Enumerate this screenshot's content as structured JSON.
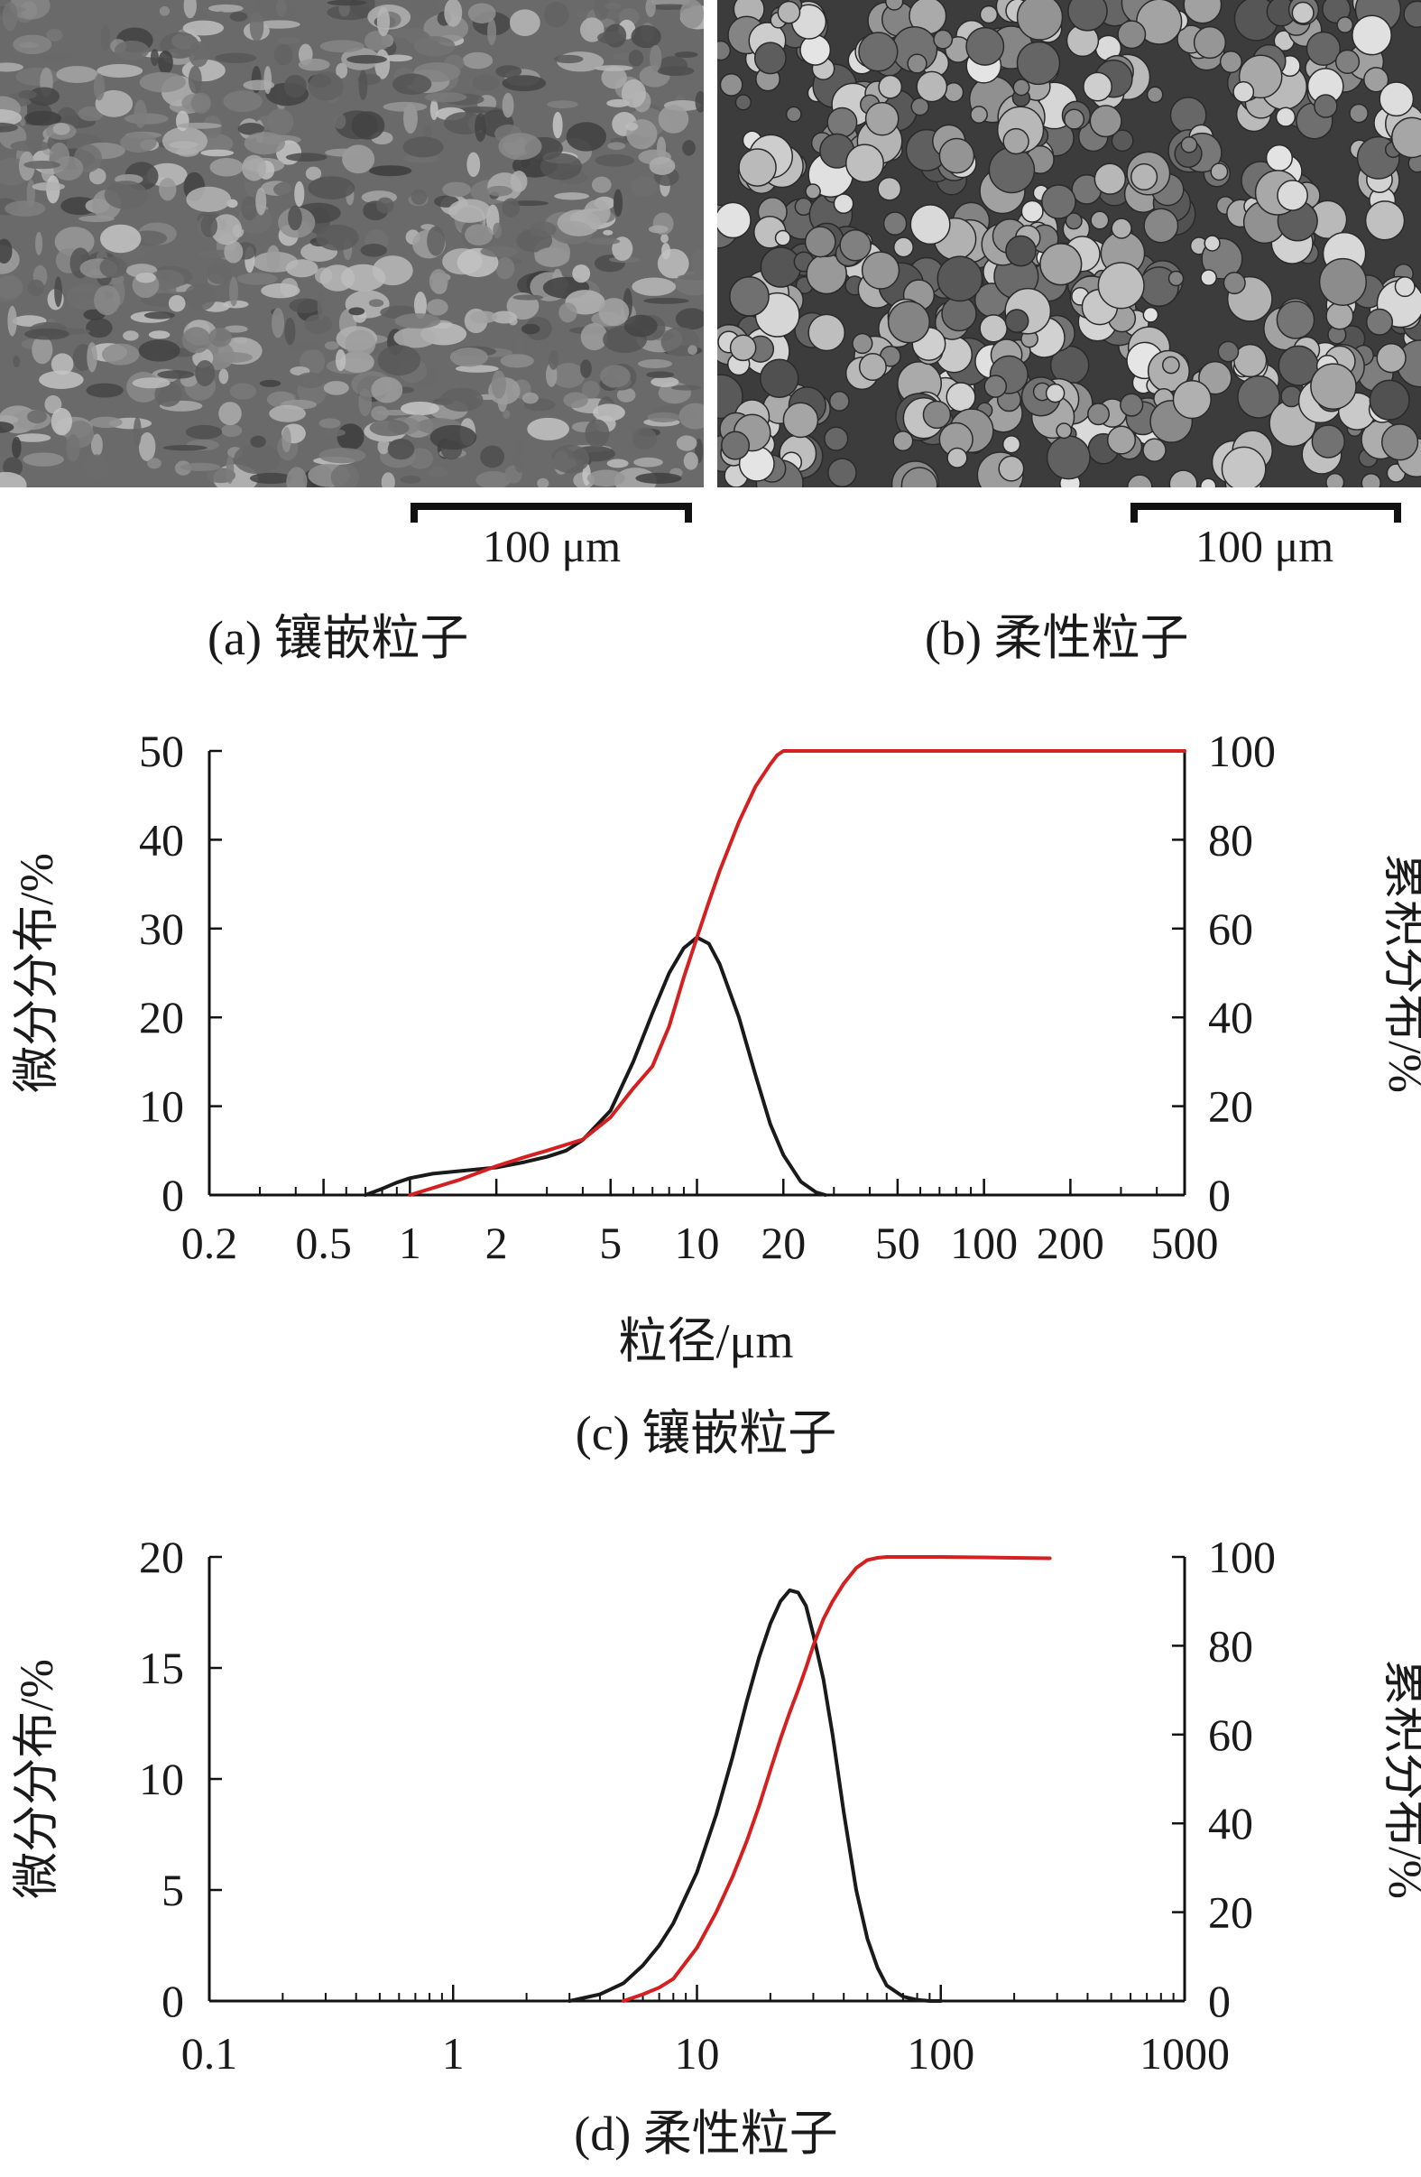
{
  "micrographs": [
    {
      "scale_label": "100 μm",
      "caption": "(a) 镶嵌粒子"
    },
    {
      "scale_label": "100 μm",
      "caption": "(b) 柔性粒子"
    }
  ],
  "chart_data": [
    {
      "type": "line",
      "caption": "(c) 镶嵌粒子",
      "xlabel": "粒径/μm",
      "ylabel": "微分分布/%",
      "ylabel_right": "累积分布/%",
      "xscale": "log",
      "xlim": [
        0.2,
        500
      ],
      "xticks": [
        "0.2",
        "0.5",
        "1",
        "2",
        "5",
        "10",
        "20",
        "50",
        "100",
        "200",
        "500"
      ],
      "ylim": [
        0,
        50
      ],
      "yticks": [
        "0",
        "10",
        "20",
        "30",
        "40",
        "50"
      ],
      "ylim_right": [
        0,
        100
      ],
      "yticks_right": [
        "0",
        "20",
        "40",
        "60",
        "80",
        "100"
      ],
      "grid": false,
      "series": [
        {
          "axis": "left",
          "color": "#1a1a1a",
          "x": [
            0.7,
            0.8,
            0.9,
            1.0,
            1.2,
            1.5,
            2.0,
            2.5,
            3.0,
            3.5,
            4.0,
            5.0,
            6.0,
            7.0,
            8.0,
            9.0,
            10.0,
            11.0,
            12.0,
            14.0,
            16.0,
            18.0,
            20.0,
            23.0,
            26.0,
            28.0
          ],
          "y": [
            0,
            0.7,
            1.4,
            1.9,
            2.4,
            2.7,
            3.1,
            3.7,
            4.3,
            5.0,
            6.2,
            9.5,
            15.0,
            20.5,
            25.0,
            27.8,
            29.0,
            28.3,
            26.0,
            20.0,
            13.5,
            8.0,
            4.5,
            1.5,
            0.3,
            0
          ]
        },
        {
          "axis": "right",
          "color": "#d42020",
          "x": [
            1.0,
            1.5,
            2.0,
            2.5,
            3.0,
            4.0,
            5.0,
            6.0,
            7.0,
            8.0,
            9.0,
            10.0,
            11.0,
            12.0,
            14.0,
            16.0,
            18.0,
            19.0,
            20.0,
            25.0,
            50.0,
            100.0,
            200.0,
            500.0
          ],
          "y": [
            0,
            3.5,
            6.5,
            8.5,
            10.0,
            12.5,
            17.5,
            24.0,
            29.0,
            38.0,
            49.0,
            58.0,
            66.0,
            73.0,
            84.0,
            92.0,
            97.0,
            99.0,
            100.0,
            100.0,
            100.0,
            100.0,
            100.0,
            100.0
          ]
        }
      ]
    },
    {
      "type": "line",
      "caption": "(d) 柔性粒子",
      "xlabel": "",
      "ylabel": "微分分布/%",
      "ylabel_right": "累积分布/%",
      "xscale": "log",
      "xlim": [
        0.1,
        1000
      ],
      "xticks": [
        "0.1",
        "1",
        "10",
        "100",
        "1000"
      ],
      "ylim": [
        0,
        20
      ],
      "yticks": [
        "0",
        "5",
        "10",
        "15",
        "20"
      ],
      "ylim_right": [
        0,
        100
      ],
      "yticks_right": [
        "0",
        "20",
        "40",
        "60",
        "80",
        "100"
      ],
      "grid": false,
      "series": [
        {
          "axis": "left",
          "color": "#1a1a1a",
          "x": [
            3.0,
            4.0,
            5.0,
            6.0,
            7.0,
            8.0,
            10.0,
            12.0,
            14.0,
            16.0,
            18.0,
            20.0,
            22.0,
            24.0,
            26.0,
            28.0,
            30.0,
            33.0,
            36.0,
            40.0,
            45.0,
            50.0,
            55.0,
            60.0,
            70.0,
            80.0,
            90.0,
            100.0
          ],
          "y": [
            0,
            0.3,
            0.8,
            1.6,
            2.5,
            3.5,
            5.8,
            8.4,
            11.0,
            13.5,
            15.5,
            17.0,
            18.0,
            18.5,
            18.4,
            17.8,
            16.5,
            14.5,
            12.0,
            8.5,
            5.0,
            2.8,
            1.5,
            0.7,
            0.2,
            0.05,
            0,
            0
          ]
        },
        {
          "axis": "right",
          "color": "#d42020",
          "x": [
            5.0,
            6.0,
            7.0,
            8.0,
            10.0,
            12.0,
            14.0,
            16.0,
            18.0,
            20.0,
            22.0,
            24.0,
            26.0,
            28.0,
            30.0,
            33.0,
            36.0,
            40.0,
            45.0,
            50.0,
            55.0,
            60.0,
            70.0,
            100.0,
            150.0,
            200.0,
            280.0
          ],
          "y": [
            0,
            1.5,
            3.0,
            5.0,
            12.0,
            20.0,
            28.0,
            36.0,
            44.0,
            52.0,
            59.0,
            65.0,
            70.0,
            75.0,
            80.0,
            86.0,
            90.0,
            94.0,
            97.5,
            99.3,
            99.8,
            100.0,
            100.0,
            100.0,
            99.9,
            99.8,
            99.7
          ]
        }
      ]
    }
  ]
}
